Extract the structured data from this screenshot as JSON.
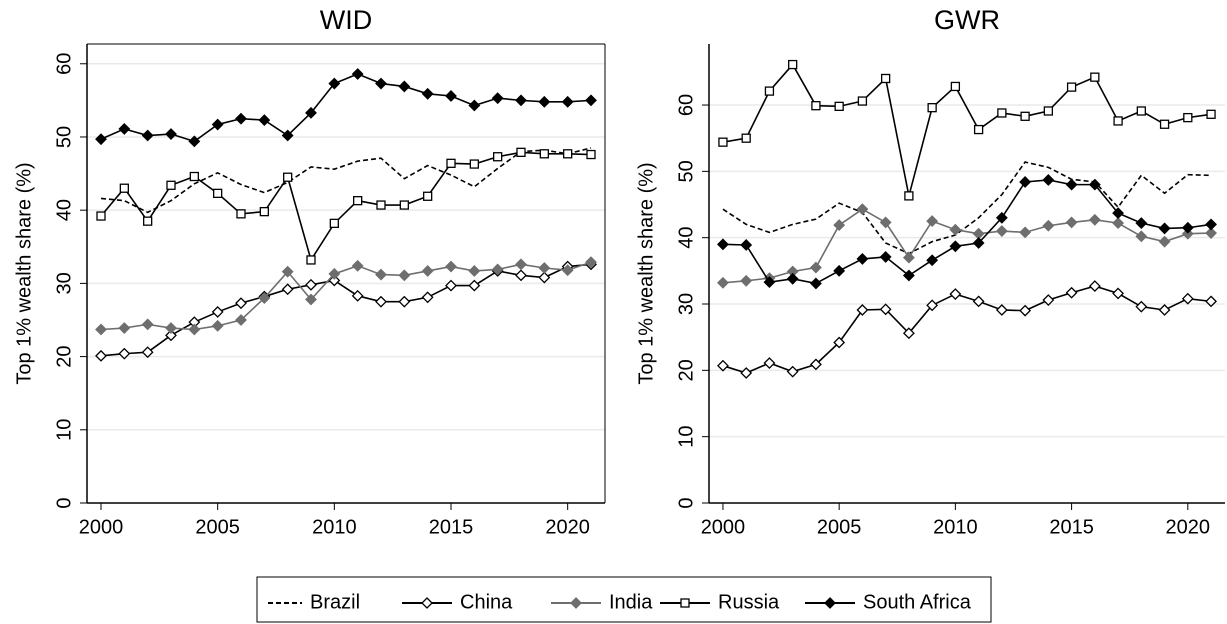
{
  "chart_data": [
    {
      "type": "line",
      "title": "WID",
      "y_label": "Top 1% wealth share (%)",
      "x": [
        2000,
        2001,
        2002,
        2003,
        2004,
        2005,
        2006,
        2007,
        2008,
        2009,
        2010,
        2011,
        2012,
        2013,
        2014,
        2015,
        2016,
        2017,
        2018,
        2019,
        2020,
        2021
      ],
      "xlim": [
        1999.4,
        2021.6
      ],
      "ylim": [
        0,
        62.7
      ],
      "xticks": [
        2000,
        2005,
        2010,
        2015,
        2020
      ],
      "yticks": [
        0,
        10,
        20,
        30,
        40,
        50,
        60
      ],
      "grid": true,
      "series": [
        {
          "name": "Brazil",
          "color": "#000000",
          "line_style": "dashed",
          "marker": "none",
          "values": [
            41.6,
            41.3,
            39.7,
            41.3,
            43.6,
            45.1,
            43.5,
            42.4,
            43.8,
            45.9,
            45.6,
            46.7,
            47.1,
            44.3,
            46.1,
            44.8,
            43.2,
            45.7,
            48.0,
            48.2,
            47.7,
            48.5
          ]
        },
        {
          "name": "China",
          "color": "#000000",
          "line_style": "solid",
          "marker": "diamond-open",
          "values": [
            20.1,
            20.4,
            20.6,
            22.9,
            24.7,
            26.1,
            27.3,
            28.2,
            29.2,
            29.8,
            30.4,
            28.3,
            27.5,
            27.5,
            28.1,
            29.7,
            29.7,
            31.7,
            31.1,
            30.8,
            32.3,
            32.6
          ]
        },
        {
          "name": "India",
          "color": "#6e6e6e",
          "line_style": "solid",
          "marker": "diamond-filled",
          "values": [
            23.7,
            23.9,
            24.4,
            23.9,
            23.7,
            24.2,
            25.0,
            28.0,
            31.6,
            27.8,
            31.3,
            32.4,
            31.2,
            31.1,
            31.7,
            32.3,
            31.7,
            31.9,
            32.6,
            32.1,
            31.8,
            32.9
          ]
        },
        {
          "name": "Russia",
          "color": "#000000",
          "line_style": "solid",
          "marker": "square-open",
          "values": [
            39.2,
            43.0,
            38.5,
            43.4,
            44.6,
            42.3,
            39.5,
            39.8,
            44.5,
            33.2,
            38.2,
            41.3,
            40.7,
            40.7,
            41.9,
            46.4,
            46.3,
            47.3,
            47.9,
            47.7,
            47.7,
            47.6
          ]
        },
        {
          "name": "South Africa",
          "color": "#000000",
          "line_style": "solid",
          "marker": "diamond-filled",
          "values": [
            49.7,
            51.1,
            50.2,
            50.4,
            49.4,
            51.7,
            52.5,
            52.3,
            50.2,
            53.3,
            57.3,
            58.6,
            57.3,
            56.9,
            55.9,
            55.6,
            54.3,
            55.3,
            55.0,
            54.8,
            54.8,
            55.0
          ]
        }
      ]
    },
    {
      "type": "line",
      "title": "GWR",
      "y_label": "Top 1% wealth share (%)",
      "x": [
        2000,
        2001,
        2002,
        2003,
        2004,
        2005,
        2006,
        2007,
        2008,
        2009,
        2010,
        2011,
        2012,
        2013,
        2014,
        2015,
        2016,
        2017,
        2018,
        2019,
        2020,
        2021
      ],
      "xlim": [
        1999.4,
        2021.6
      ],
      "ylim": [
        0,
        69.2
      ],
      "xticks": [
        2000,
        2005,
        2010,
        2015,
        2020
      ],
      "yticks": [
        0,
        10,
        20,
        30,
        40,
        50,
        60
      ],
      "grid": true,
      "series": [
        {
          "name": "Brazil",
          "color": "#000000",
          "line_style": "dashed",
          "marker": "none",
          "values": [
            44.3,
            42.0,
            40.8,
            42.0,
            42.8,
            45.2,
            43.8,
            39.2,
            37.6,
            39.4,
            40.4,
            43.0,
            46.5,
            51.4,
            50.6,
            48.8,
            48.4,
            44.6,
            49.4,
            46.7,
            49.5,
            49.4
          ]
        },
        {
          "name": "China",
          "color": "#000000",
          "line_style": "solid",
          "marker": "diamond-open",
          "values": [
            20.7,
            19.6,
            21.1,
            19.8,
            20.9,
            24.2,
            29.1,
            29.2,
            25.6,
            29.8,
            31.5,
            30.4,
            29.1,
            29.0,
            30.6,
            31.7,
            32.7,
            31.6,
            29.6,
            29.1,
            30.8,
            30.4
          ]
        },
        {
          "name": "India",
          "color": "#6e6e6e",
          "line_style": "solid",
          "marker": "diamond-filled",
          "values": [
            33.2,
            33.5,
            33.9,
            34.9,
            35.5,
            41.9,
            44.3,
            42.3,
            37.0,
            42.5,
            41.2,
            40.6,
            41.0,
            40.8,
            41.8,
            42.3,
            42.7,
            42.2,
            40.2,
            39.4,
            40.6,
            40.7
          ]
        },
        {
          "name": "Russia",
          "color": "#000000",
          "line_style": "solid",
          "marker": "square-open",
          "values": [
            54.4,
            55.0,
            62.1,
            66.1,
            59.9,
            59.8,
            60.6,
            64.0,
            46.3,
            59.6,
            62.8,
            56.3,
            58.8,
            58.3,
            59.1,
            62.7,
            64.2,
            57.6,
            59.1,
            57.1,
            58.1,
            58.6
          ]
        },
        {
          "name": "South Africa",
          "color": "#000000",
          "line_style": "solid",
          "marker": "diamond-filled",
          "values": [
            39.0,
            38.9,
            33.3,
            33.8,
            33.1,
            35.0,
            36.8,
            37.1,
            34.3,
            36.6,
            38.7,
            39.2,
            43.0,
            48.4,
            48.7,
            48.0,
            48.0,
            43.7,
            42.2,
            41.4,
            41.5,
            42.0
          ]
        }
      ]
    }
  ]
}
